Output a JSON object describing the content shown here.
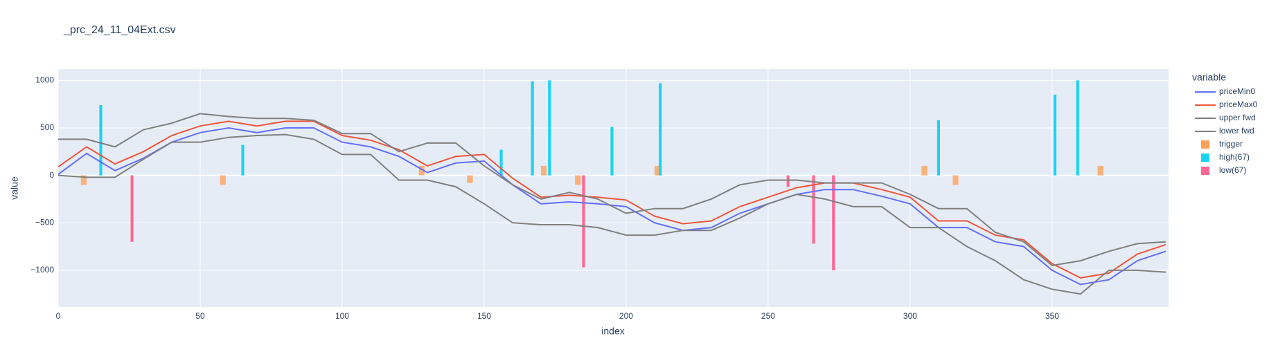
{
  "chart_data": {
    "type": "line",
    "title": "_prc_24_11_04Ext.csv",
    "x_label": "index",
    "y_label": "value",
    "legend_title": "variable",
    "x": [
      0,
      10,
      20,
      30,
      40,
      50,
      60,
      70,
      80,
      90,
      100,
      110,
      120,
      130,
      140,
      150,
      160,
      170,
      180,
      190,
      200,
      210,
      220,
      230,
      240,
      250,
      260,
      270,
      280,
      290,
      300,
      310,
      320,
      330,
      340,
      350,
      360,
      370,
      380,
      390
    ],
    "series": [
      {
        "name": "priceMin0",
        "type": "line",
        "color": "#636efa",
        "values": [
          10,
          230,
          50,
          180,
          350,
          450,
          500,
          450,
          500,
          500,
          350,
          300,
          200,
          30,
          130,
          150,
          -100,
          -300,
          -280,
          -300,
          -330,
          -500,
          -580,
          -550,
          -400,
          -300,
          -200,
          -150,
          -150,
          -220,
          -300,
          -550,
          -550,
          -700,
          -750,
          -1000,
          -1150,
          -1100,
          -900,
          -800
        ]
      },
      {
        "name": "priceMax0",
        "type": "line",
        "color": "#ef553b",
        "values": [
          90,
          300,
          120,
          250,
          420,
          520,
          570,
          520,
          570,
          570,
          420,
          370,
          270,
          100,
          200,
          220,
          -30,
          -230,
          -210,
          -230,
          -260,
          -430,
          -510,
          -480,
          -330,
          -230,
          -130,
          -80,
          -80,
          -150,
          -230,
          -480,
          -480,
          -630,
          -680,
          -930,
          -1080,
          -1030,
          -830,
          -730
        ]
      },
      {
        "name": "upper fwd",
        "type": "line",
        "color": "#7f7f7f",
        "values": [
          380,
          380,
          300,
          480,
          550,
          650,
          620,
          600,
          600,
          580,
          440,
          440,
          250,
          340,
          340,
          100,
          -100,
          -250,
          -180,
          -250,
          -400,
          -350,
          -350,
          -250,
          -100,
          -50,
          -50,
          -80,
          -80,
          -80,
          -200,
          -350,
          -350,
          -600,
          -700,
          -950,
          -900,
          -800,
          -720,
          -700
        ]
      },
      {
        "name": "lower fwd",
        "type": "line",
        "color": "#7f7f7f",
        "values": [
          0,
          -20,
          -20,
          170,
          350,
          350,
          400,
          420,
          430,
          380,
          220,
          220,
          -50,
          -50,
          -120,
          -300,
          -500,
          -520,
          -520,
          -550,
          -630,
          -630,
          -580,
          -580,
          -450,
          -300,
          -200,
          -250,
          -330,
          -330,
          -550,
          -550,
          -750,
          -900,
          -1100,
          -1200,
          -1250,
          -1000,
          -1000,
          -1020
        ]
      },
      {
        "name": "trigger",
        "type": "bar",
        "color": "#ffa15a",
        "x": [
          9,
          58,
          128,
          145,
          171,
          183,
          211,
          305,
          316,
          367
        ],
        "values": [
          -100,
          -100,
          100,
          -80,
          100,
          -100,
          100,
          100,
          -100,
          100
        ]
      },
      {
        "name": "high(67)",
        "type": "bar",
        "color": "#19d3f3",
        "x": [
          15,
          65,
          156,
          167,
          173,
          195,
          212,
          310,
          351,
          359
        ],
        "values": [
          740,
          320,
          270,
          990,
          1000,
          510,
          970,
          580,
          850,
          1000
        ]
      },
      {
        "name": "low(67)",
        "type": "bar",
        "color": "#ff6692",
        "x": [
          26,
          185,
          257,
          266,
          273
        ],
        "values": [
          -700,
          -970,
          -120,
          -720,
          -1000
        ]
      }
    ],
    "xlim": [
      0,
      391
    ],
    "ylim": [
      -1387,
      1119
    ],
    "xticks": [
      0,
      50,
      100,
      150,
      200,
      250,
      300,
      350
    ],
    "yticks": [
      {
        "value": -1000,
        "label": "−1000"
      },
      {
        "value": -500,
        "label": "−500"
      },
      0,
      500,
      1000
    ],
    "grid": true
  }
}
